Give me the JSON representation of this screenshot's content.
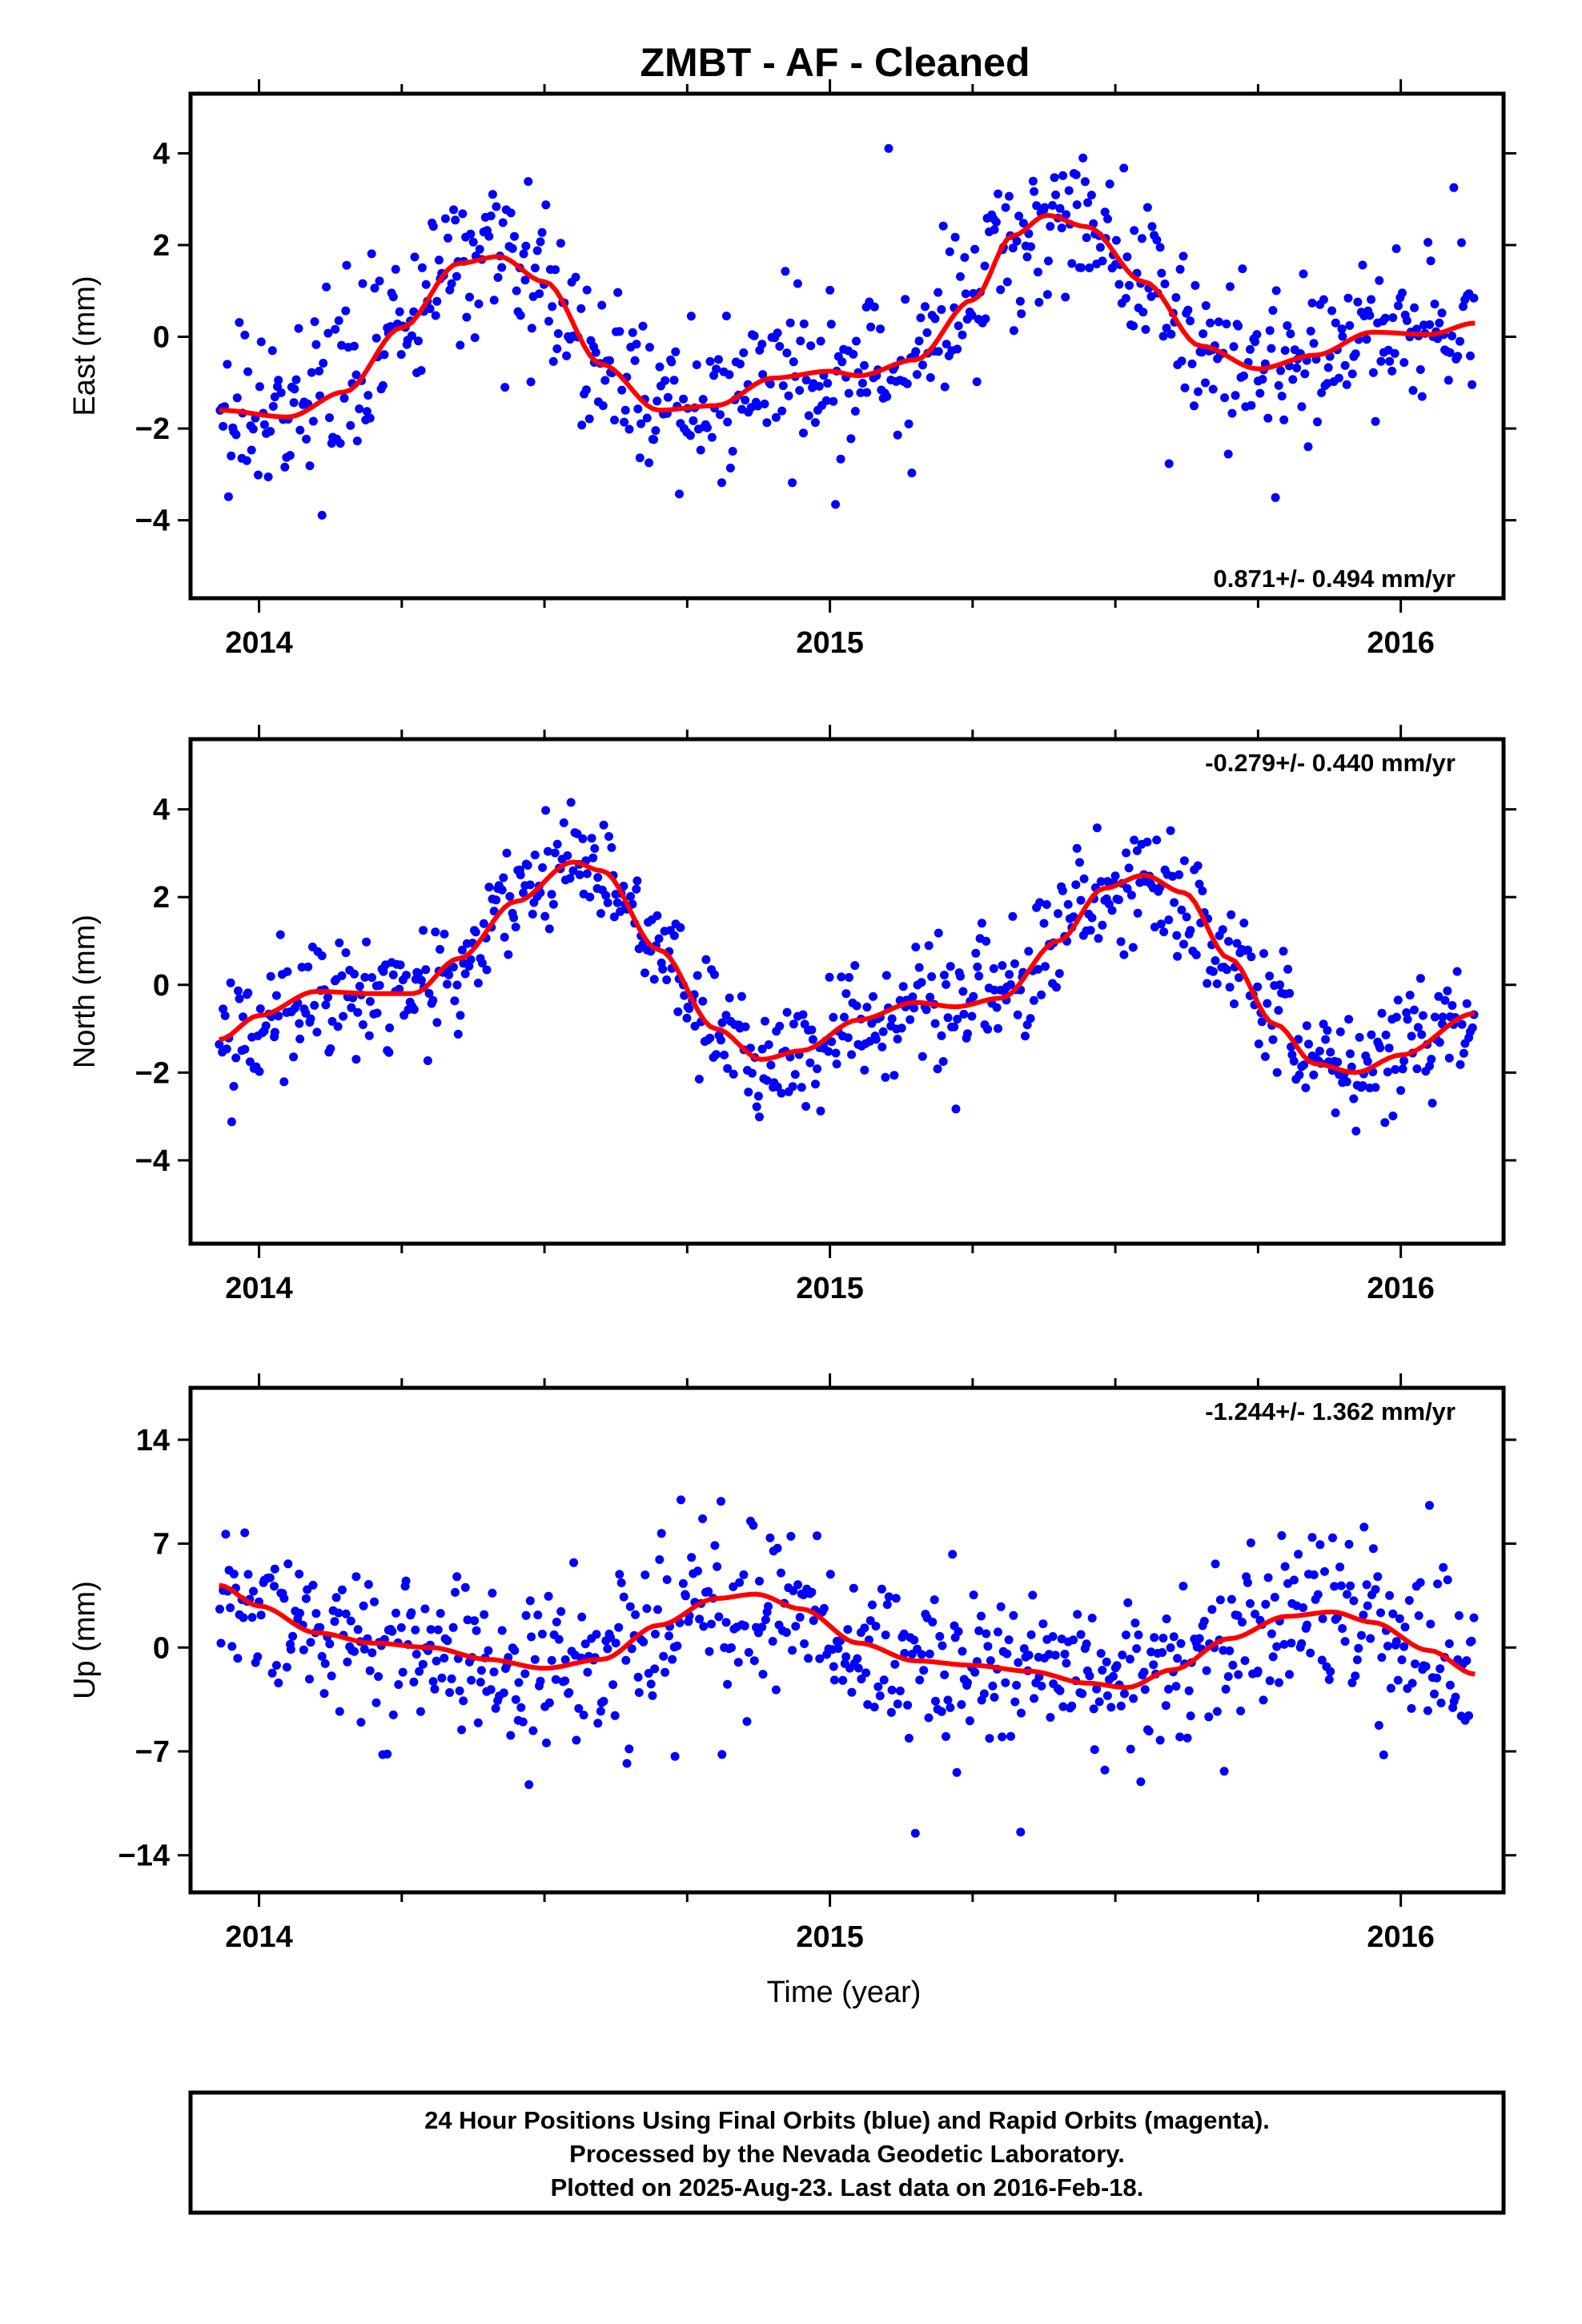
{
  "title": "ZMBT  - AF - Cleaned",
  "xlabel": "Time (year)",
  "footer": [
    "24 Hour Positions Using Final Orbits (blue) and Rapid Orbits (magenta).",
    "Processed by the Nevada Geodetic Laboratory.",
    "Plotted on 2025-Aug-23. Last data on 2016-Feb-18."
  ],
  "colors": {
    "final_orbits": "#0000ff",
    "fit": "#ff0000",
    "frame": "#000000"
  },
  "chart_data": [
    {
      "type": "scatter",
      "ylabel": "East (mm)",
      "rate_label": "0.871+/- 0.494 mm/yr",
      "xlim": [
        2013.88,
        2016.18
      ],
      "ylim": [
        -5.7,
        5.3
      ],
      "x_ticks": [
        2014,
        2015,
        2016
      ],
      "x_tick_labels": [
        "2014",
        "2015",
        "2016"
      ],
      "y_ticks": [
        -4,
        -2,
        0,
        2,
        4
      ],
      "y_tick_labels": [
        "−4",
        "−2",
        "0",
        "2",
        "4"
      ],
      "data_start": 2013.93,
      "data_end": 2016.13,
      "fit_curve": {
        "x": [
          2013.93,
          2014.05,
          2014.15,
          2014.25,
          2014.35,
          2014.42,
          2014.5,
          2014.6,
          2014.7,
          2014.8,
          2014.9,
          2015.0,
          2015.05,
          2015.15,
          2015.25,
          2015.32,
          2015.38,
          2015.45,
          2015.55,
          2015.65,
          2015.75,
          2015.85,
          2015.95,
          2016.05,
          2016.13
        ],
        "y": [
          -1.6,
          -1.75,
          -1.2,
          0.2,
          1.6,
          1.75,
          1.2,
          -0.6,
          -1.6,
          -1.5,
          -0.9,
          -0.75,
          -0.85,
          -0.5,
          0.8,
          2.2,
          2.65,
          2.4,
          1.2,
          -0.2,
          -0.7,
          -0.4,
          0.1,
          0.05,
          0.3
        ]
      },
      "scatter_noise": 1.35,
      "scatter_count": 700
    },
    {
      "type": "scatter",
      "ylabel": "North (mm)",
      "rate_label": "-0.279+/- 0.440 mm/yr",
      "xlim": [
        2013.88,
        2016.18
      ],
      "ylim": [
        -5.9,
        5.6
      ],
      "x_ticks": [
        2014,
        2015,
        2016
      ],
      "x_tick_labels": [
        "2014",
        "2015",
        "2016"
      ],
      "y_ticks": [
        -4,
        -2,
        0,
        2,
        4
      ],
      "y_tick_labels": [
        "−4",
        "−2",
        "0",
        "2",
        "4"
      ],
      "data_start": 2013.93,
      "data_end": 2016.13,
      "fit_curve": {
        "x": [
          2013.93,
          2014.0,
          2014.1,
          2014.2,
          2014.27,
          2014.35,
          2014.45,
          2014.55,
          2014.6,
          2014.7,
          2014.8,
          2014.88,
          2014.95,
          2015.05,
          2015.15,
          2015.22,
          2015.3,
          2015.4,
          2015.48,
          2015.55,
          2015.62,
          2015.7,
          2015.78,
          2015.85,
          2015.92,
          2016.0,
          2016.13
        ],
        "y": [
          -1.25,
          -0.7,
          -0.15,
          -0.2,
          -0.2,
          0.6,
          1.9,
          2.8,
          2.6,
          0.8,
          -1.0,
          -1.7,
          -1.5,
          -0.8,
          -0.4,
          -0.5,
          -0.3,
          1.0,
          2.2,
          2.5,
          2.1,
          0.6,
          -0.9,
          -1.8,
          -2.0,
          -1.6,
          -0.65
        ]
      },
      "scatter_noise": 1.1,
      "scatter_count": 700
    },
    {
      "type": "scatter",
      "ylabel": "Up (mm)",
      "rate_label": "-1.244+/- 1.362 mm/yr",
      "xlim": [
        2013.88,
        2016.18
      ],
      "ylim": [
        -16.5,
        17.5
      ],
      "x_ticks": [
        2014,
        2015,
        2016
      ],
      "x_tick_labels": [
        "2014",
        "2015",
        "2016"
      ],
      "y_ticks": [
        -14,
        -7,
        0,
        7,
        14
      ],
      "y_tick_labels": [
        "−14",
        "−7",
        "0",
        "7",
        "14"
      ],
      "data_start": 2013.93,
      "data_end": 2016.13,
      "fit_curve": {
        "x": [
          2013.93,
          2014.0,
          2014.1,
          2014.2,
          2014.3,
          2014.4,
          2014.5,
          2014.6,
          2014.7,
          2014.8,
          2014.87,
          2014.95,
          2015.05,
          2015.15,
          2015.25,
          2015.35,
          2015.45,
          2015.52,
          2015.6,
          2015.7,
          2015.8,
          2015.88,
          2015.95,
          2016.05,
          2016.13
        ],
        "y": [
          4.2,
          2.8,
          1.0,
          0.3,
          0.0,
          -0.8,
          -1.4,
          -0.8,
          1.5,
          3.3,
          3.6,
          2.6,
          0.3,
          -0.9,
          -1.2,
          -1.6,
          -2.4,
          -2.7,
          -1.5,
          0.6,
          2.1,
          2.4,
          1.7,
          -0.2,
          -1.8
        ]
      },
      "scatter_noise": 4.2,
      "scatter_count": 700
    }
  ]
}
